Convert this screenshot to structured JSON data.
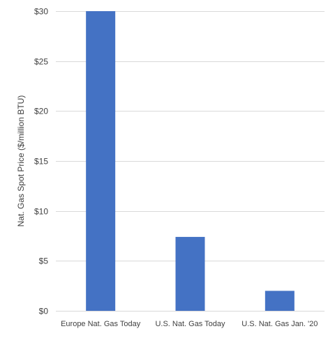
{
  "chart_data": {
    "type": "bar",
    "categories": [
      "Europe Nat. Gas Today",
      "U.S. Nat. Gas Today",
      "U.S. Nat. Gas Jan. '20"
    ],
    "values": [
      30.0,
      7.4,
      2.0
    ],
    "title": "",
    "xlabel": "",
    "ylabel": "Nat. Gas Spot Price ($/million BTU)",
    "ylim": [
      0,
      30
    ],
    "yticks": [
      0,
      5,
      10,
      15,
      20,
      25,
      30
    ],
    "ytick_labels": [
      "$0",
      "$5",
      "$10",
      "$15",
      "$20",
      "$25",
      "$30"
    ],
    "grid": true,
    "legend": "none"
  },
  "colors": {
    "bar": "#4472C4",
    "grid": "#D9D9D9",
    "text": "#404040"
  }
}
